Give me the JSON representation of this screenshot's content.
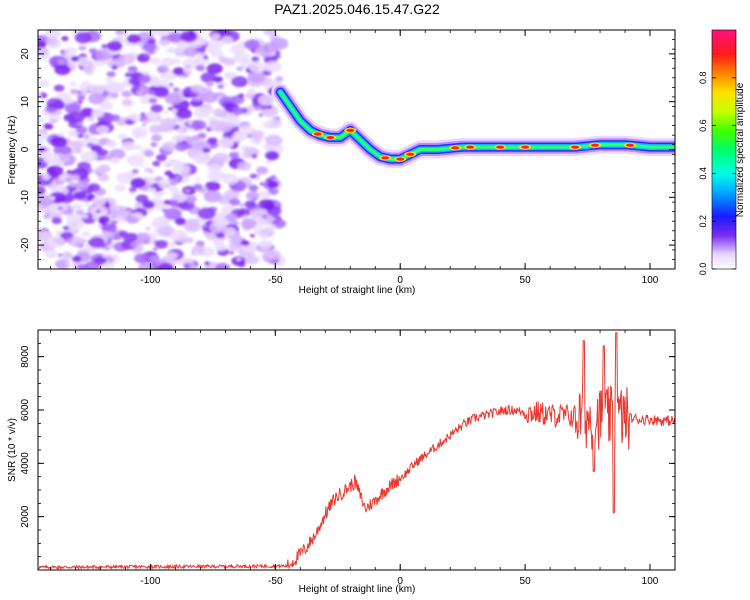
{
  "title": "PAZ1.2025.046.15.47.G22",
  "chart_data": [
    {
      "type": "heatmap",
      "name": "spectrogram",
      "xlabel": "Height of straight line (km)",
      "ylabel": "Frequency (Hz)",
      "xlim": [
        -145,
        110
      ],
      "ylim": [
        -25,
        25
      ],
      "xticks": [
        -100,
        -50,
        0,
        50,
        100
      ],
      "yticks": [
        -20,
        -10,
        0,
        10,
        20
      ],
      "signal_ridge": {
        "x": [
          -48,
          -44,
          -40,
          -36,
          -32,
          -28,
          -24,
          -20,
          -16,
          -12,
          -8,
          -4,
          0,
          4,
          8,
          15,
          25,
          40,
          55,
          70,
          80,
          90,
          100,
          110
        ],
        "y": [
          12,
          9,
          6,
          4,
          3,
          2.5,
          2.5,
          4,
          2,
          0,
          -1.5,
          -2,
          -2,
          -1,
          0,
          0,
          0.5,
          0.5,
          0.5,
          0.5,
          1,
          1,
          0.5,
          0.5
        ]
      },
      "noise_region_x": [
        -145,
        -48
      ],
      "colorbar": {
        "label": "Normalized spectral amplitude",
        "range": [
          0,
          1
        ],
        "ticks": [
          "0.0",
          "0.2",
          "0.4",
          "0.6",
          "0.8"
        ]
      }
    },
    {
      "type": "line",
      "name": "snr",
      "xlabel": "Height of straight line (km)",
      "ylabel": "SNR (10 * v/v)",
      "xlim": [
        -145,
        110
      ],
      "ylim": [
        0,
        9000
      ],
      "xticks": [
        -100,
        -50,
        0,
        50,
        100
      ],
      "yticks": [
        2000,
        4000,
        6000,
        8000
      ],
      "series": [
        {
          "name": "SNR",
          "color": "#e8382f",
          "x": [
            -145,
            -45,
            -42,
            -38,
            -34,
            -30,
            -26,
            -22,
            -18,
            -14,
            -10,
            -6,
            -2,
            2,
            6,
            10,
            14,
            18,
            22,
            26,
            30,
            34,
            38,
            42,
            46,
            50,
            55,
            60,
            65,
            70,
            75,
            80,
            84,
            88,
            92,
            96,
            100,
            105,
            110
          ],
          "y": [
            100,
            150,
            400,
            800,
            1300,
            2100,
            2700,
            3000,
            3300,
            2300,
            2600,
            3000,
            3300,
            3600,
            4000,
            4300,
            4600,
            4900,
            5200,
            5500,
            5700,
            5800,
            5900,
            6000,
            6000,
            5900,
            5900,
            5800,
            5800,
            5750,
            5700,
            5700,
            5700,
            5750,
            5700,
            5650,
            5650,
            5600,
            5600
          ]
        }
      ]
    }
  ]
}
